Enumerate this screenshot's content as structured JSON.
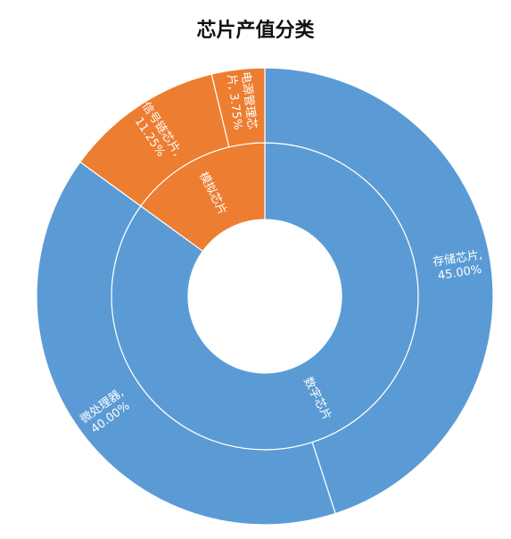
{
  "title": "芯片产值分类",
  "chart_data": {
    "type": "sunburst",
    "title": "芯片产值分类",
    "colors": {
      "数字芯片": "#5b9bd5",
      "模拟芯片": "#ed7d31"
    },
    "inner": [
      {
        "name": "数字芯片",
        "value": 85.0
      },
      {
        "name": "模拟芯片",
        "value": 15.0
      }
    ],
    "outer": [
      {
        "name": "存储芯片",
        "parent": "数字芯片",
        "value": 45.0,
        "label_lines": [
          "存储芯片,",
          "45.00%"
        ]
      },
      {
        "name": "微处理器",
        "parent": "数字芯片",
        "value": 40.0,
        "label_lines": [
          "微处理器,",
          "40.00%"
        ]
      },
      {
        "name": "信号链芯片",
        "parent": "模拟芯片",
        "value": 11.25,
        "label_lines": [
          "信号链芯片,",
          "11.25%"
        ]
      },
      {
        "name": "电源管理芯片",
        "parent": "模拟芯片",
        "value": 3.75,
        "label_lines": [
          "电源管理芯",
          "片, 3.75%"
        ]
      }
    ]
  }
}
